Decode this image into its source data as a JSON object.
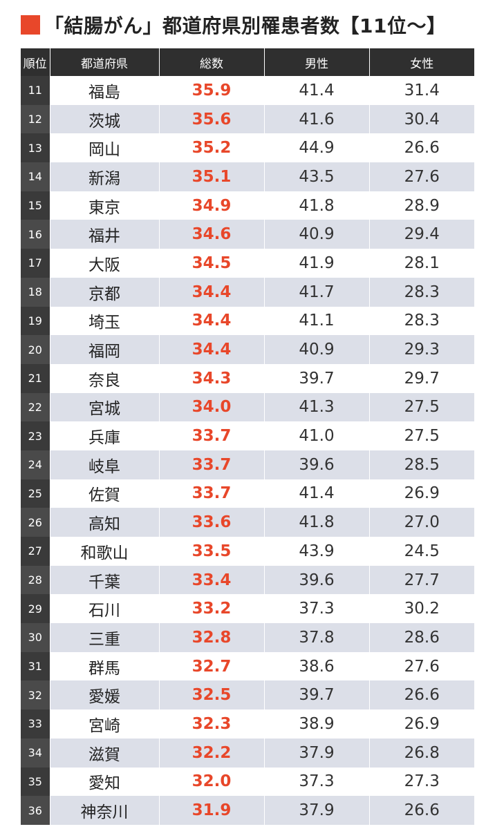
{
  "title": "「結腸がん」都道府県別罹患者数【11位〜】",
  "colors": {
    "accent": "#e8472a",
    "header_bg": "#2f2f2f",
    "rank_bg": "#3a3a3a",
    "stripe": "#dcdfe8"
  },
  "chart_data": {
    "type": "table",
    "title": "「結腸がん」都道府県別罹患者数【11位〜】",
    "columns": [
      "順位",
      "都道府県",
      "総数",
      "男性",
      "女性"
    ],
    "rows": [
      {
        "rank": "11",
        "pref": "福島",
        "total": "35.9",
        "male": "41.4",
        "female": "31.4"
      },
      {
        "rank": "12",
        "pref": "茨城",
        "total": "35.6",
        "male": "41.6",
        "female": "30.4"
      },
      {
        "rank": "13",
        "pref": "岡山",
        "total": "35.2",
        "male": "44.9",
        "female": "26.6"
      },
      {
        "rank": "14",
        "pref": "新潟",
        "total": "35.1",
        "male": "43.5",
        "female": "27.6"
      },
      {
        "rank": "15",
        "pref": "東京",
        "total": "34.9",
        "male": "41.8",
        "female": "28.9"
      },
      {
        "rank": "16",
        "pref": "福井",
        "total": "34.6",
        "male": "40.9",
        "female": "29.4"
      },
      {
        "rank": "17",
        "pref": "大阪",
        "total": "34.5",
        "male": "41.9",
        "female": "28.1"
      },
      {
        "rank": "18",
        "pref": "京都",
        "total": "34.4",
        "male": "41.7",
        "female": "28.3"
      },
      {
        "rank": "19",
        "pref": "埼玉",
        "total": "34.4",
        "male": "41.1",
        "female": "28.3"
      },
      {
        "rank": "20",
        "pref": "福岡",
        "total": "34.4",
        "male": "40.9",
        "female": "29.3"
      },
      {
        "rank": "21",
        "pref": "奈良",
        "total": "34.3",
        "male": "39.7",
        "female": "29.7"
      },
      {
        "rank": "22",
        "pref": "宮城",
        "total": "34.0",
        "male": "41.3",
        "female": "27.5"
      },
      {
        "rank": "23",
        "pref": "兵庫",
        "total": "33.7",
        "male": "41.0",
        "female": "27.5"
      },
      {
        "rank": "24",
        "pref": "岐阜",
        "total": "33.7",
        "male": "39.6",
        "female": "28.5"
      },
      {
        "rank": "25",
        "pref": "佐賀",
        "total": "33.7",
        "male": "41.4",
        "female": "26.9"
      },
      {
        "rank": "26",
        "pref": "高知",
        "total": "33.6",
        "male": "41.8",
        "female": "27.0"
      },
      {
        "rank": "27",
        "pref": "和歌山",
        "total": "33.5",
        "male": "43.9",
        "female": "24.5"
      },
      {
        "rank": "28",
        "pref": "千葉",
        "total": "33.4",
        "male": "39.6",
        "female": "27.7"
      },
      {
        "rank": "29",
        "pref": "石川",
        "total": "33.2",
        "male": "37.3",
        "female": "30.2"
      },
      {
        "rank": "30",
        "pref": "三重",
        "total": "32.8",
        "male": "37.8",
        "female": "28.6"
      },
      {
        "rank": "31",
        "pref": "群馬",
        "total": "32.7",
        "male": "38.6",
        "female": "27.6"
      },
      {
        "rank": "32",
        "pref": "愛媛",
        "total": "32.5",
        "male": "39.7",
        "female": "26.6"
      },
      {
        "rank": "33",
        "pref": "宮崎",
        "total": "32.3",
        "male": "38.9",
        "female": "26.9"
      },
      {
        "rank": "34",
        "pref": "滋賀",
        "total": "32.2",
        "male": "37.9",
        "female": "26.8"
      },
      {
        "rank": "35",
        "pref": "愛知",
        "total": "32.0",
        "male": "37.3",
        "female": "27.3"
      },
      {
        "rank": "36",
        "pref": "神奈川",
        "total": "31.9",
        "male": "37.9",
        "female": "26.6"
      }
    ]
  }
}
